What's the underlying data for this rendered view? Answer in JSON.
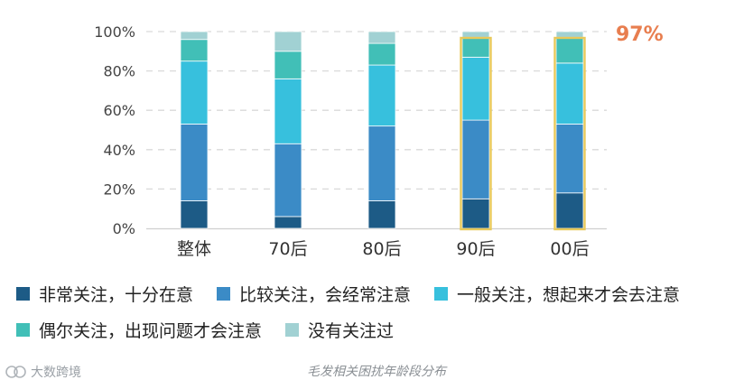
{
  "chart_data": {
    "type": "bar",
    "stacked": true,
    "categories": [
      "整体",
      "70后",
      "80后",
      "90后",
      "00后"
    ],
    "series": [
      {
        "name": "非常关注，十分在意",
        "color": "#1d5b86",
        "values": [
          14,
          6,
          14,
          15,
          18
        ]
      },
      {
        "name": "比较关注，会经常注意",
        "color": "#3b8bc6",
        "values": [
          39,
          37,
          38,
          40,
          35
        ]
      },
      {
        "name": "一般关注，想起来才会去注意",
        "color": "#37c0dd",
        "values": [
          32,
          33,
          31,
          32,
          31
        ]
      },
      {
        "name": "偶尔关注，出现问题才会注意",
        "color": "#41bfb7",
        "values": [
          11,
          14,
          11,
          10,
          13
        ]
      },
      {
        "name": "没有关注过",
        "color": "#a1d1d3",
        "values": [
          4,
          10,
          6,
          3,
          3
        ]
      }
    ],
    "yticks": [
      "0%",
      "20%",
      "40%",
      "60%",
      "80%",
      "100%"
    ],
    "ylim": [
      0,
      100
    ],
    "grid": true,
    "highlight": {
      "categories": [
        "90后",
        "00后"
      ],
      "color": "#e8c95a"
    },
    "annotation": {
      "text": "97%",
      "color": "#e87e4f"
    },
    "caption": "毛发相关困扰年龄段分布"
  },
  "watermark": "大数跨境"
}
